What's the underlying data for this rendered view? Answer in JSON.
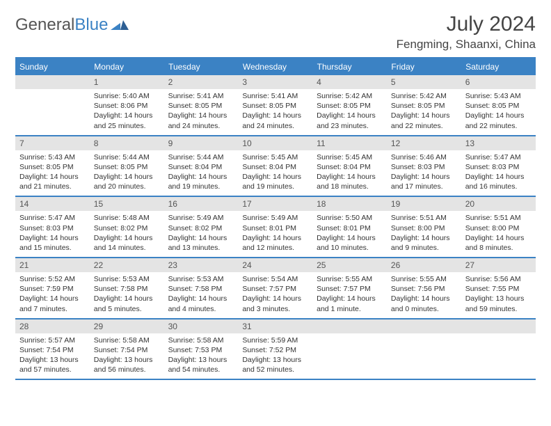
{
  "logo": {
    "text1": "General",
    "text2": "Blue"
  },
  "title": "July 2024",
  "location": "Fengming, Shaanxi, China",
  "colors": {
    "accent": "#3b82c4",
    "dayHeaderBg": "#e4e4e4",
    "text": "#333333"
  },
  "weekdays": [
    "Sunday",
    "Monday",
    "Tuesday",
    "Wednesday",
    "Thursday",
    "Friday",
    "Saturday"
  ],
  "weeks": [
    [
      null,
      {
        "n": "1",
        "sr": "Sunrise: 5:40 AM",
        "ss": "Sunset: 8:06 PM",
        "dl": "Daylight: 14 hours and 25 minutes."
      },
      {
        "n": "2",
        "sr": "Sunrise: 5:41 AM",
        "ss": "Sunset: 8:05 PM",
        "dl": "Daylight: 14 hours and 24 minutes."
      },
      {
        "n": "3",
        "sr": "Sunrise: 5:41 AM",
        "ss": "Sunset: 8:05 PM",
        "dl": "Daylight: 14 hours and 24 minutes."
      },
      {
        "n": "4",
        "sr": "Sunrise: 5:42 AM",
        "ss": "Sunset: 8:05 PM",
        "dl": "Daylight: 14 hours and 23 minutes."
      },
      {
        "n": "5",
        "sr": "Sunrise: 5:42 AM",
        "ss": "Sunset: 8:05 PM",
        "dl": "Daylight: 14 hours and 22 minutes."
      },
      {
        "n": "6",
        "sr": "Sunrise: 5:43 AM",
        "ss": "Sunset: 8:05 PM",
        "dl": "Daylight: 14 hours and 22 minutes."
      }
    ],
    [
      {
        "n": "7",
        "sr": "Sunrise: 5:43 AM",
        "ss": "Sunset: 8:05 PM",
        "dl": "Daylight: 14 hours and 21 minutes."
      },
      {
        "n": "8",
        "sr": "Sunrise: 5:44 AM",
        "ss": "Sunset: 8:05 PM",
        "dl": "Daylight: 14 hours and 20 minutes."
      },
      {
        "n": "9",
        "sr": "Sunrise: 5:44 AM",
        "ss": "Sunset: 8:04 PM",
        "dl": "Daylight: 14 hours and 19 minutes."
      },
      {
        "n": "10",
        "sr": "Sunrise: 5:45 AM",
        "ss": "Sunset: 8:04 PM",
        "dl": "Daylight: 14 hours and 19 minutes."
      },
      {
        "n": "11",
        "sr": "Sunrise: 5:45 AM",
        "ss": "Sunset: 8:04 PM",
        "dl": "Daylight: 14 hours and 18 minutes."
      },
      {
        "n": "12",
        "sr": "Sunrise: 5:46 AM",
        "ss": "Sunset: 8:03 PM",
        "dl": "Daylight: 14 hours and 17 minutes."
      },
      {
        "n": "13",
        "sr": "Sunrise: 5:47 AM",
        "ss": "Sunset: 8:03 PM",
        "dl": "Daylight: 14 hours and 16 minutes."
      }
    ],
    [
      {
        "n": "14",
        "sr": "Sunrise: 5:47 AM",
        "ss": "Sunset: 8:03 PM",
        "dl": "Daylight: 14 hours and 15 minutes."
      },
      {
        "n": "15",
        "sr": "Sunrise: 5:48 AM",
        "ss": "Sunset: 8:02 PM",
        "dl": "Daylight: 14 hours and 14 minutes."
      },
      {
        "n": "16",
        "sr": "Sunrise: 5:49 AM",
        "ss": "Sunset: 8:02 PM",
        "dl": "Daylight: 14 hours and 13 minutes."
      },
      {
        "n": "17",
        "sr": "Sunrise: 5:49 AM",
        "ss": "Sunset: 8:01 PM",
        "dl": "Daylight: 14 hours and 12 minutes."
      },
      {
        "n": "18",
        "sr": "Sunrise: 5:50 AM",
        "ss": "Sunset: 8:01 PM",
        "dl": "Daylight: 14 hours and 10 minutes."
      },
      {
        "n": "19",
        "sr": "Sunrise: 5:51 AM",
        "ss": "Sunset: 8:00 PM",
        "dl": "Daylight: 14 hours and 9 minutes."
      },
      {
        "n": "20",
        "sr": "Sunrise: 5:51 AM",
        "ss": "Sunset: 8:00 PM",
        "dl": "Daylight: 14 hours and 8 minutes."
      }
    ],
    [
      {
        "n": "21",
        "sr": "Sunrise: 5:52 AM",
        "ss": "Sunset: 7:59 PM",
        "dl": "Daylight: 14 hours and 7 minutes."
      },
      {
        "n": "22",
        "sr": "Sunrise: 5:53 AM",
        "ss": "Sunset: 7:58 PM",
        "dl": "Daylight: 14 hours and 5 minutes."
      },
      {
        "n": "23",
        "sr": "Sunrise: 5:53 AM",
        "ss": "Sunset: 7:58 PM",
        "dl": "Daylight: 14 hours and 4 minutes."
      },
      {
        "n": "24",
        "sr": "Sunrise: 5:54 AM",
        "ss": "Sunset: 7:57 PM",
        "dl": "Daylight: 14 hours and 3 minutes."
      },
      {
        "n": "25",
        "sr": "Sunrise: 5:55 AM",
        "ss": "Sunset: 7:57 PM",
        "dl": "Daylight: 14 hours and 1 minute."
      },
      {
        "n": "26",
        "sr": "Sunrise: 5:55 AM",
        "ss": "Sunset: 7:56 PM",
        "dl": "Daylight: 14 hours and 0 minutes."
      },
      {
        "n": "27",
        "sr": "Sunrise: 5:56 AM",
        "ss": "Sunset: 7:55 PM",
        "dl": "Daylight: 13 hours and 59 minutes."
      }
    ],
    [
      {
        "n": "28",
        "sr": "Sunrise: 5:57 AM",
        "ss": "Sunset: 7:54 PM",
        "dl": "Daylight: 13 hours and 57 minutes."
      },
      {
        "n": "29",
        "sr": "Sunrise: 5:58 AM",
        "ss": "Sunset: 7:54 PM",
        "dl": "Daylight: 13 hours and 56 minutes."
      },
      {
        "n": "30",
        "sr": "Sunrise: 5:58 AM",
        "ss": "Sunset: 7:53 PM",
        "dl": "Daylight: 13 hours and 54 minutes."
      },
      {
        "n": "31",
        "sr": "Sunrise: 5:59 AM",
        "ss": "Sunset: 7:52 PM",
        "dl": "Daylight: 13 hours and 52 minutes."
      },
      null,
      null,
      null
    ]
  ]
}
